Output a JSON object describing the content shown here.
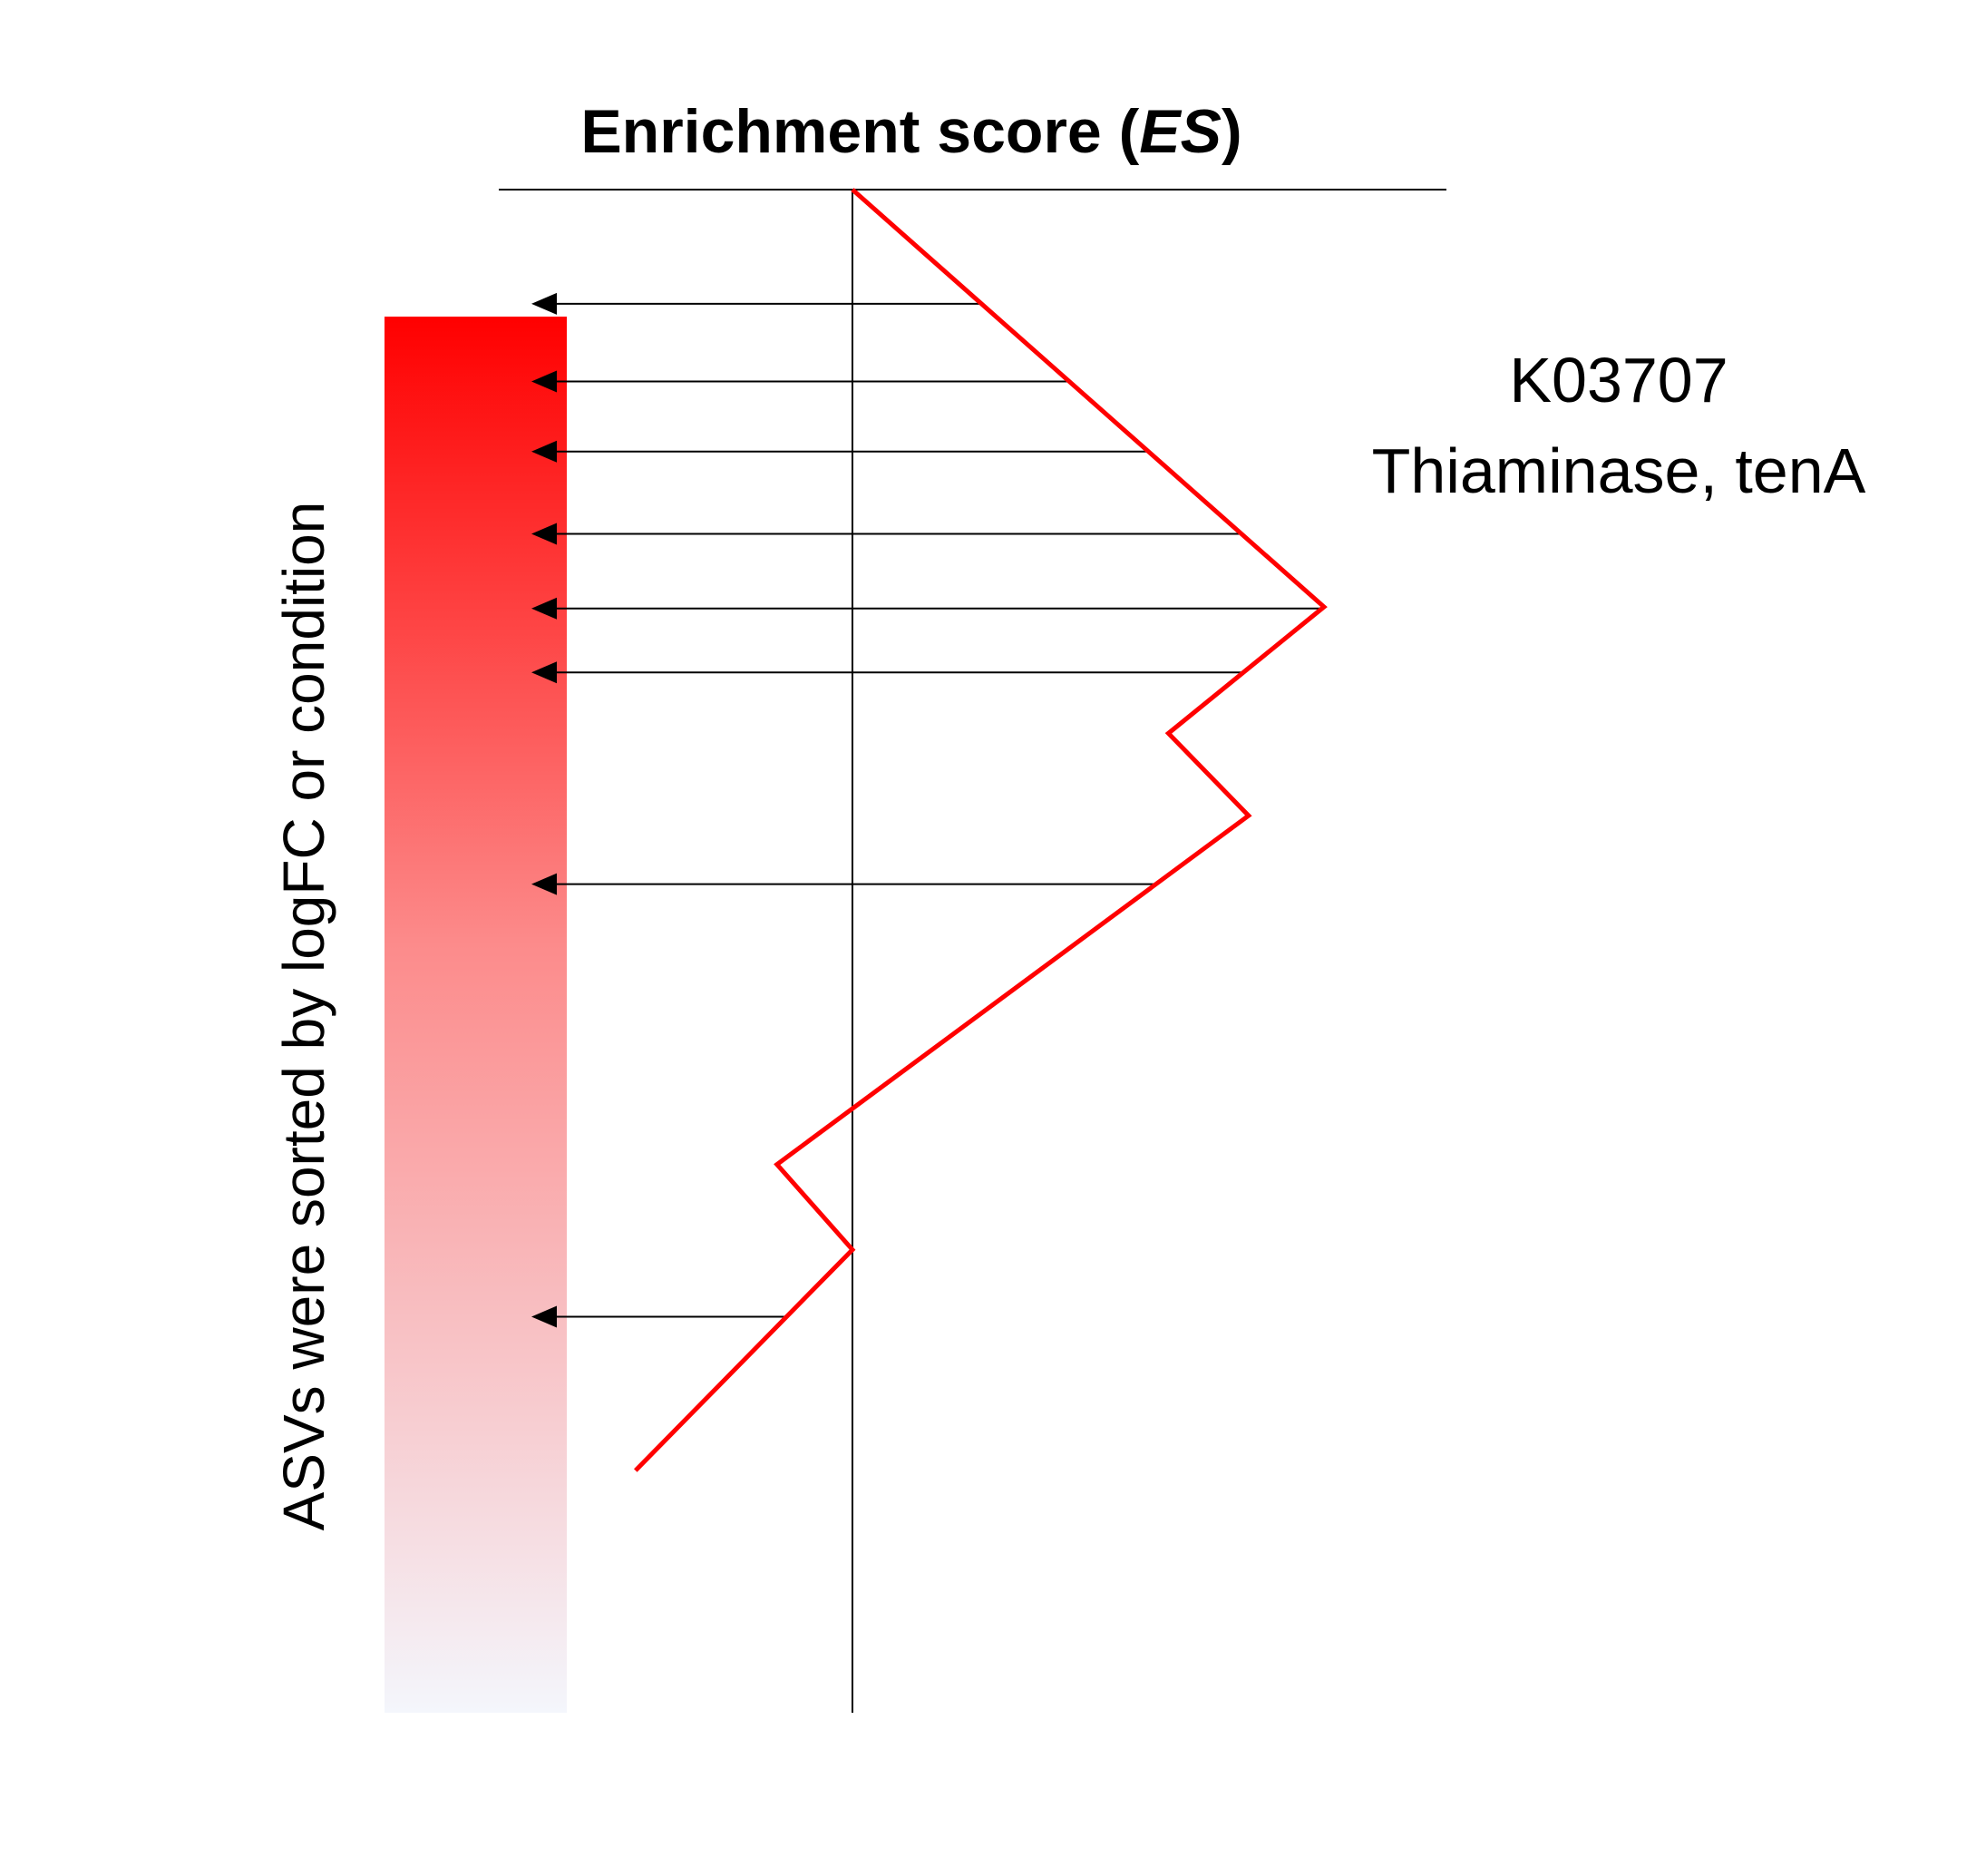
{
  "title": {
    "prefix": "Enrichment score (",
    "italic": "ES",
    "suffix": ")"
  },
  "annotation": {
    "line1": "K03707",
    "line2": "Thiaminase, tenA"
  },
  "side_label": "ASVs were sorted by logFC or condition",
  "colors": {
    "gradient_top": "#ff0000",
    "gradient_bottom": "#f4f6fc",
    "es_line": "#ff0000",
    "axis": "#000000",
    "arrow": "#000000"
  },
  "es_profile": [
    {
      "rank": 0.0,
      "es": 0.0
    },
    {
      "rank": 0.274,
      "es": 1.0
    },
    {
      "rank": 0.357,
      "es": 0.67
    },
    {
      "rank": 0.411,
      "es": 0.84
    },
    {
      "rank": 0.64,
      "es": -0.16
    },
    {
      "rank": 0.696,
      "es": 0.0
    },
    {
      "rank": 0.841,
      "es": -0.46
    }
  ],
  "hit_ranks": [
    0.075,
    0.126,
    0.172,
    0.226,
    0.275,
    0.317,
    0.456,
    0.74
  ]
}
